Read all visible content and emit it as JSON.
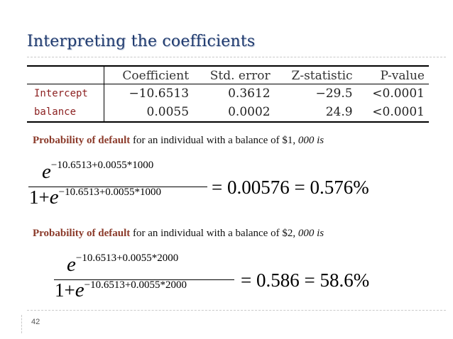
{
  "slide": {
    "title": "Interpreting the coefficients",
    "page_number": "42"
  },
  "table": {
    "headers": [
      "",
      "Coefficient",
      "Std. error",
      "Z-statistic",
      "P-value"
    ],
    "rows": [
      {
        "name": "Intercept",
        "coefficient": "−10.6513",
        "std_error": "0.3612",
        "z_statistic": "−29.5",
        "p_value": "<0.0001"
      },
      {
        "name": "balance",
        "coefficient": "0.0055",
        "std_error": "0.0002",
        "z_statistic": "24.9",
        "p_value": "<0.0001"
      }
    ]
  },
  "examples": [
    {
      "highlight": "Probability of default",
      "text": " for an individual with a balance of $1,",
      "italic": " 000 is",
      "numerator_base": "e",
      "numerator_exponent": "−10.6513+0.0055*1000",
      "denominator_prefix": "1+",
      "denominator_base": "e",
      "denominator_exponent": "−10.6513+0.0055*1000",
      "result": "= 0.00576 = 0.576%"
    },
    {
      "highlight": "Probability of default",
      "text": " for an individual with a balance of $2,",
      "italic": " 000 is",
      "numerator_base": "e",
      "numerator_exponent": "−10.6513+0.0055*2000",
      "denominator_prefix": "1+",
      "denominator_base": "e",
      "denominator_exponent": "−10.6513+0.0055*2000",
      "result": "= 0.586 = 58.6%"
    }
  ],
  "colors": {
    "title": "#1f3a6e",
    "highlight": "#8b3a2a",
    "row_name": "#8b1f1f"
  }
}
